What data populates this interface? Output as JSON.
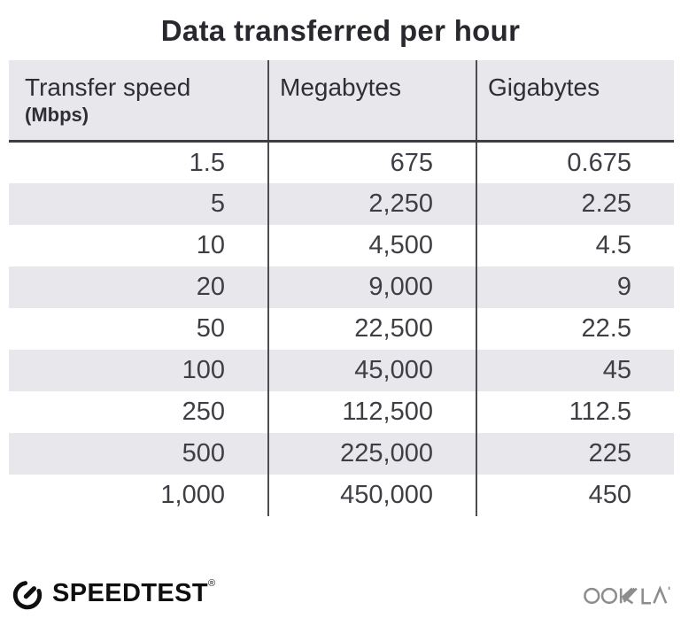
{
  "title": "Data transferred per hour",
  "table": {
    "headers": [
      {
        "label": "Transfer speed",
        "sublabel": "(Mbps)"
      },
      {
        "label": "Megabytes",
        "sublabel": ""
      },
      {
        "label": "Gigabytes",
        "sublabel": ""
      }
    ],
    "rows": [
      [
        "1.5",
        "675",
        "0.675"
      ],
      [
        "5",
        "2,250",
        "2.25"
      ],
      [
        "10",
        "4,500",
        "4.5"
      ],
      [
        "20",
        "9,000",
        "9"
      ],
      [
        "50",
        "22,500",
        "22.5"
      ],
      [
        "100",
        "45,000",
        "45"
      ],
      [
        "250",
        "112,500",
        "112.5"
      ],
      [
        "500",
        "225,000",
        "225"
      ],
      [
        "1,000",
        "450,000",
        "450"
      ]
    ]
  },
  "footer": {
    "speedtest_label": "SPEEDTEST",
    "speedtest_registered_mark": "®",
    "ookla_label": "OOKLA"
  },
  "colors": {
    "header_bg": "#e8e8ec",
    "alt_row_bg": "#e8e8ec",
    "column_divider": "#4c4c51",
    "header_rule": "#3e3e42",
    "title_text": "#28282e",
    "body_text": "#3e3e44",
    "speedtest_black": "#0f0f10",
    "ookla_gray": "#8d8d8d"
  },
  "chart_data": {
    "type": "table",
    "title": "Data transferred per hour",
    "columns": [
      "Transfer speed (Mbps)",
      "Megabytes",
      "Gigabytes"
    ],
    "rows": [
      [
        1.5,
        675,
        0.675
      ],
      [
        5,
        2250,
        2.25
      ],
      [
        10,
        4500,
        4.5
      ],
      [
        20,
        9000,
        9
      ],
      [
        50,
        22500,
        22.5
      ],
      [
        100,
        45000,
        45
      ],
      [
        250,
        112500,
        112.5
      ],
      [
        500,
        225000,
        225
      ],
      [
        1000,
        450000,
        450
      ]
    ]
  }
}
